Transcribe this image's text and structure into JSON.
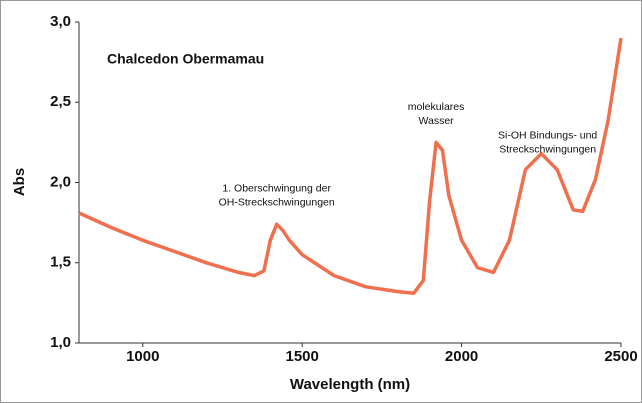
{
  "chart_data": {
    "type": "line",
    "title": "Chalcedon Obermamau",
    "x_label": "Wavelength (nm)",
    "y_label": "Abs",
    "x": [
      800,
      900,
      1000,
      1100,
      1200,
      1300,
      1350,
      1380,
      1400,
      1420,
      1440,
      1460,
      1500,
      1600,
      1700,
      1800,
      1850,
      1880,
      1900,
      1920,
      1940,
      1960,
      2000,
      2050,
      2100,
      2150,
      2200,
      2250,
      2300,
      2350,
      2380,
      2420,
      2460,
      2500
    ],
    "series": [
      {
        "color": "#ef6f4f",
        "values": [
          1.81,
          1.72,
          1.64,
          1.57,
          1.5,
          1.44,
          1.42,
          1.45,
          1.64,
          1.74,
          1.7,
          1.64,
          1.55,
          1.42,
          1.35,
          1.32,
          1.31,
          1.39,
          1.89,
          2.25,
          2.2,
          1.92,
          1.64,
          1.47,
          1.44,
          1.64,
          2.08,
          2.18,
          2.08,
          1.83,
          1.82,
          2.02,
          2.39,
          2.9
        ]
      }
    ],
    "xlim": [
      800,
      2500
    ],
    "ylim": [
      1.0,
      3.0
    ],
    "xticks": [
      1000,
      1500,
      2000,
      2500
    ],
    "yticks": [
      {
        "value": 1.0,
        "label": "1,0"
      },
      {
        "value": 1.5,
        "label": "1,5"
      },
      {
        "value": 2.0,
        "label": "2,0"
      },
      {
        "value": 2.5,
        "label": "2,5"
      },
      {
        "value": 3.0,
        "label": "3,0"
      }
    ],
    "annotations": [
      {
        "x": 1420,
        "y": 1.96,
        "lines": [
          "1. Oberschwingung der",
          "OH-Streckschwingungen"
        ]
      },
      {
        "x": 1920,
        "y": 2.47,
        "lines": [
          "molekulares",
          "Wasser"
        ]
      },
      {
        "x": 2270,
        "y": 2.29,
        "lines": [
          "Si-OH Bindungs- und",
          "Streckschwingungen"
        ]
      }
    ]
  }
}
